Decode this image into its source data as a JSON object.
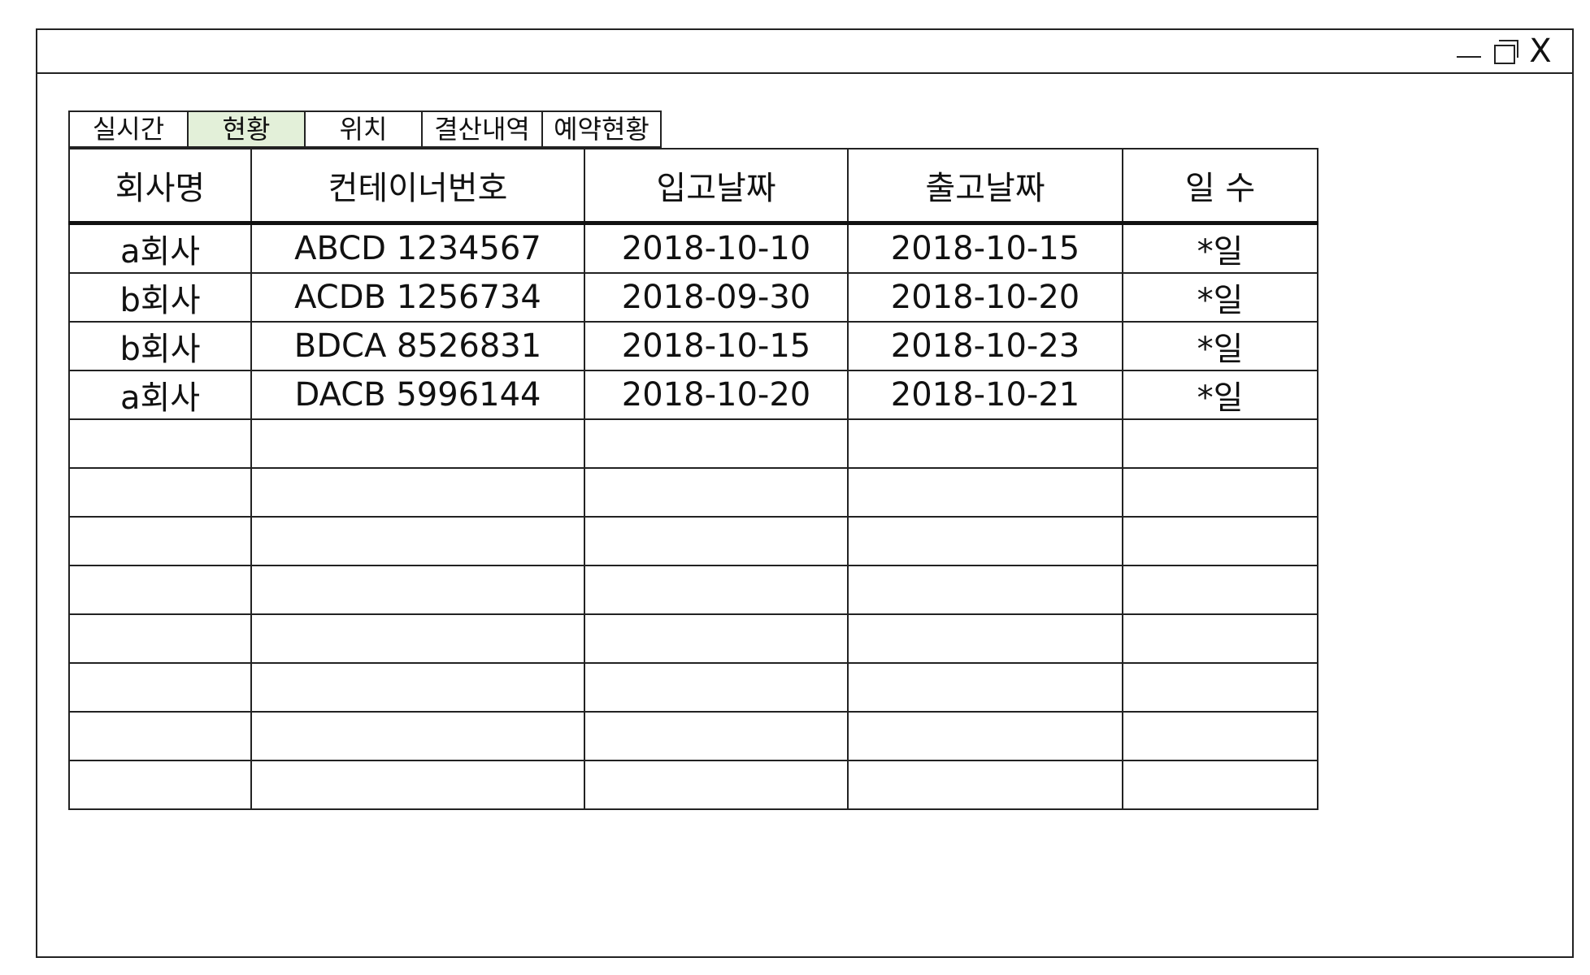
{
  "window": {
    "controls": {
      "minimize": "minimize-icon",
      "maximize": "maximize-icon",
      "close": "X"
    }
  },
  "tabs": [
    {
      "label": "실시간",
      "active": false
    },
    {
      "label": "현황",
      "active": true
    },
    {
      "label": "위치",
      "active": false
    },
    {
      "label": "결산내역",
      "active": false
    },
    {
      "label": "예약현황",
      "active": false
    }
  ],
  "active_tab_color": "#e3f0d9",
  "table": {
    "headers": [
      "회사명",
      "컨테이너번호",
      "입고날짜",
      "출고날짜",
      "일 수"
    ],
    "rows": [
      [
        "a회사",
        "ABCD 1234567",
        "2018-10-10",
        "2018-10-15",
        "*일"
      ],
      [
        "b회사",
        "ACDB 1256734",
        "2018-09-30",
        "2018-10-20",
        "*일"
      ],
      [
        "b회사",
        "BDCA 8526831",
        "2018-10-15",
        "2018-10-23",
        "*일"
      ],
      [
        "a회사",
        "DACB 5996144",
        "2018-10-20",
        "2018-10-21",
        "*일"
      ]
    ],
    "empty_rows": 8
  }
}
